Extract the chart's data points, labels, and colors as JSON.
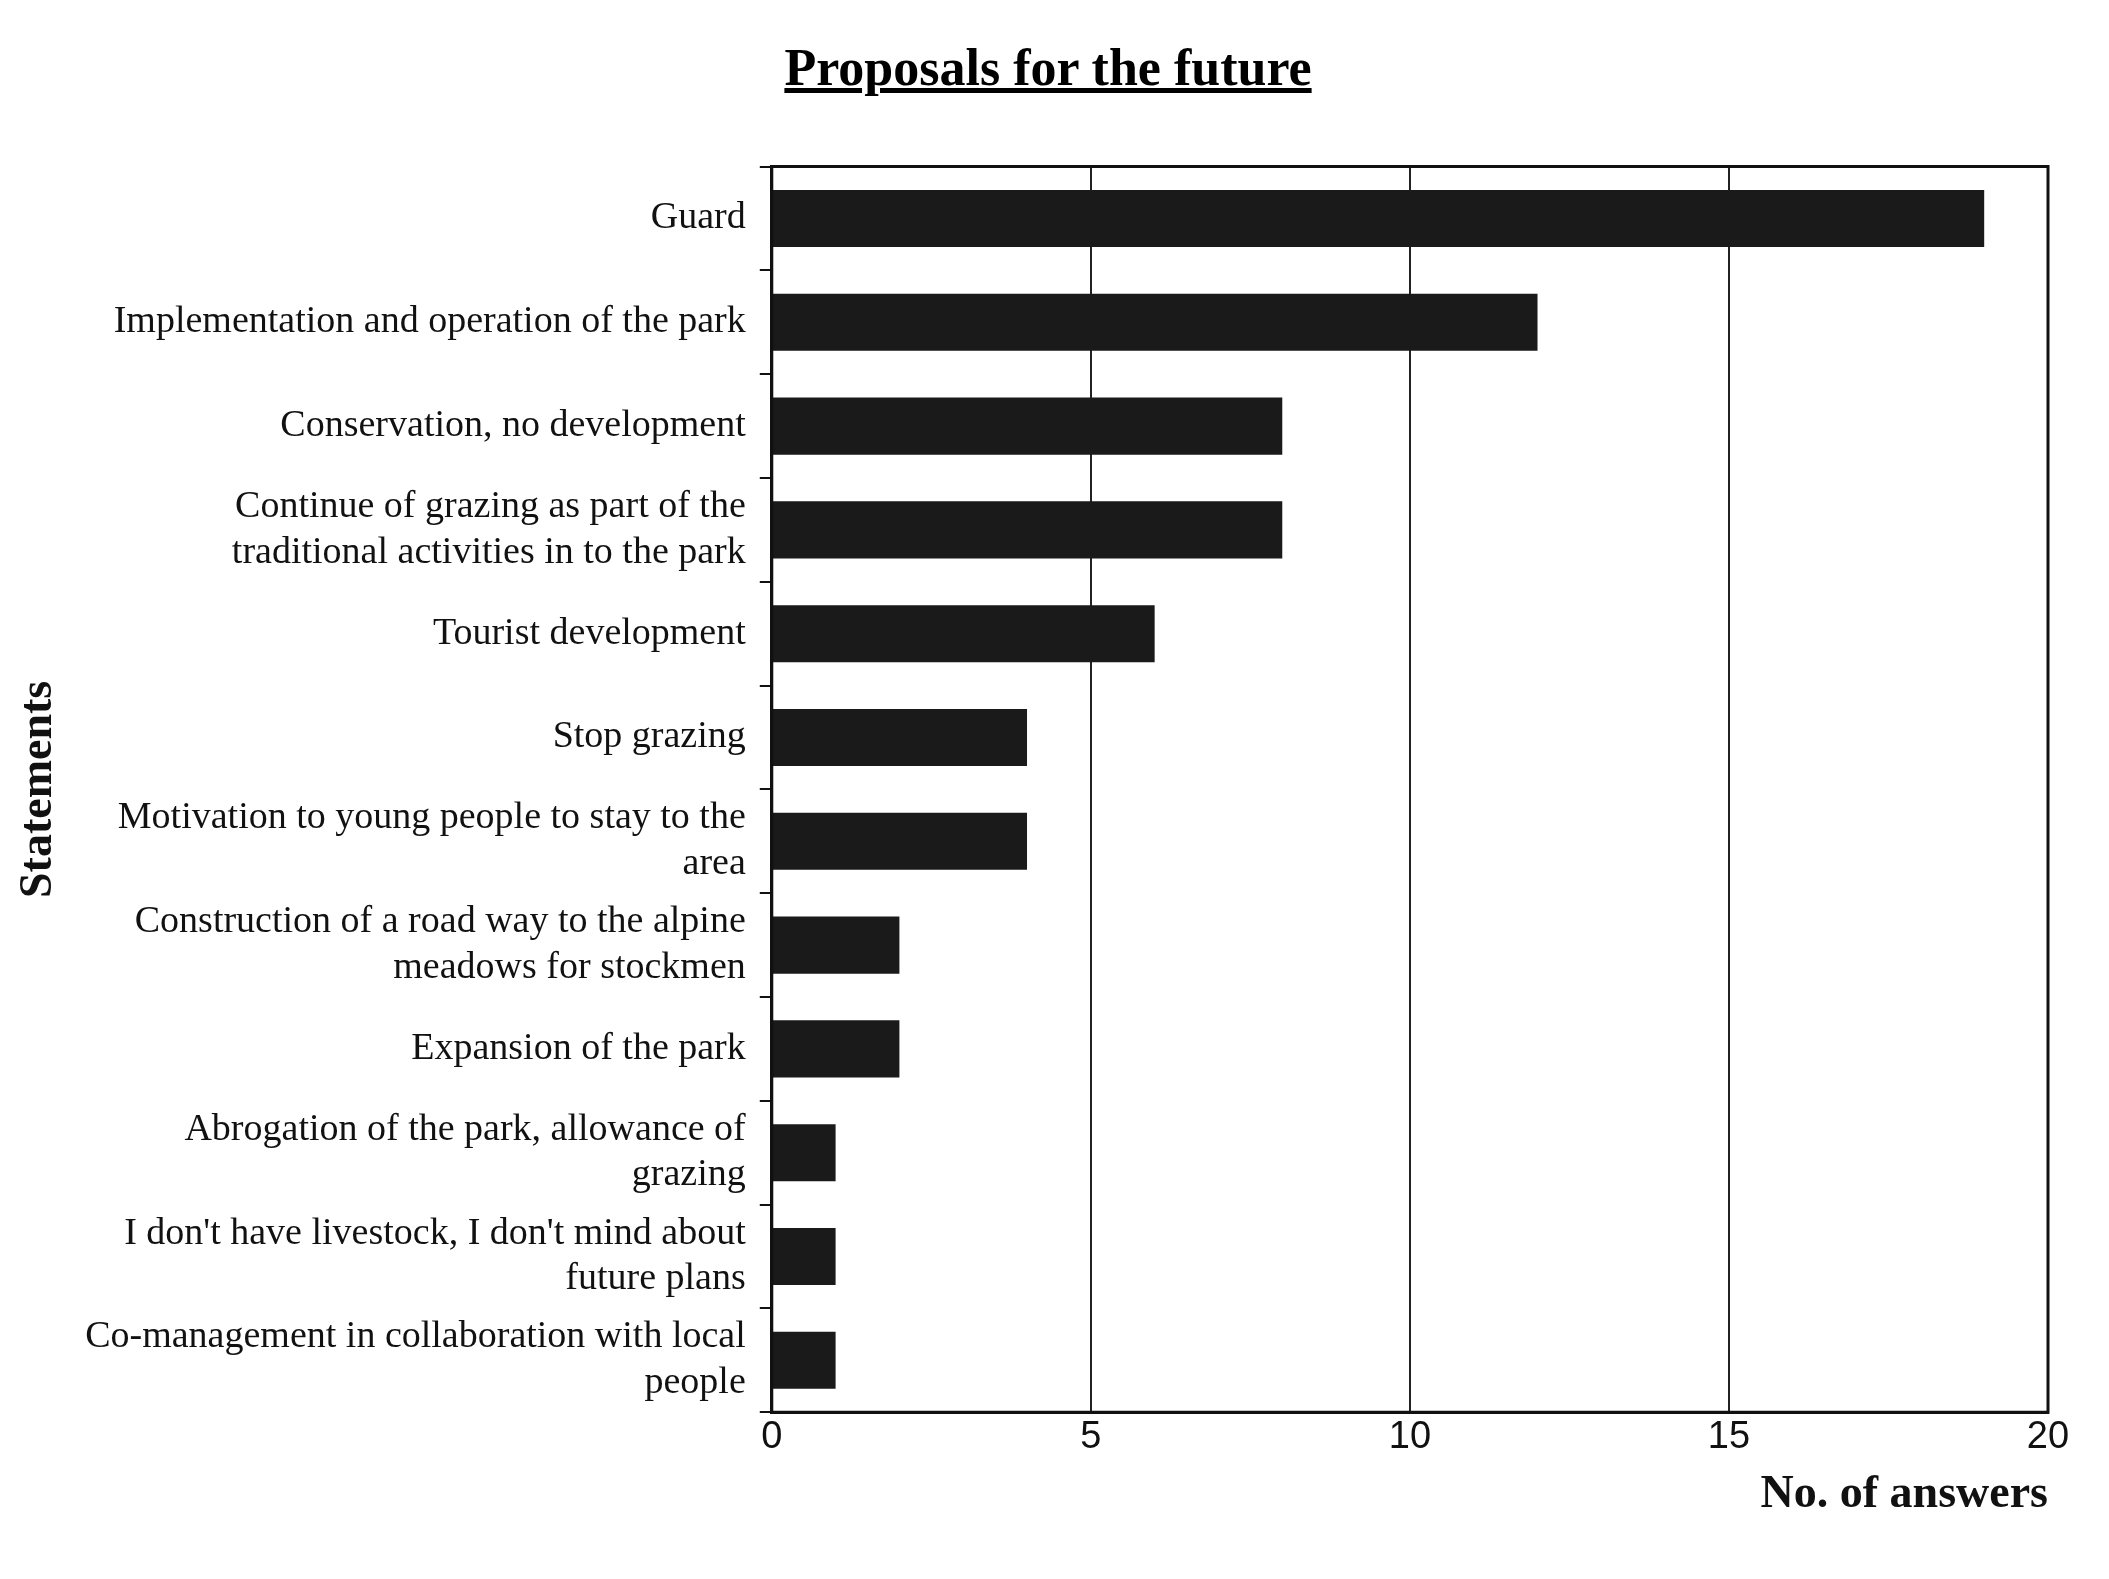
{
  "chart_data": {
    "type": "bar",
    "orientation": "horizontal",
    "title": "Proposals for the future",
    "xlabel": "No. of answers",
    "ylabel": "Statements",
    "categories": [
      "Guard",
      "Implementation and operation of the park",
      "Conservation, no development",
      "Continue of grazing as part of the traditional activities in to the park",
      "Tourist development",
      "Stop grazing",
      "Motivation to young people to stay to the area",
      "Construction of a road way to the alpine meadows for stockmen",
      "Expansion of the park",
      "Abrogation of the park, allowance of grazing",
      "I don't have livestock, I don't mind about future plans",
      "Co-management in collaboration with local people"
    ],
    "values": [
      19,
      12,
      8,
      8,
      6,
      4,
      4,
      2,
      2,
      1,
      1,
      1
    ],
    "color": "#1a1a1a",
    "xlim": [
      0,
      20
    ],
    "xticks": [
      0,
      5,
      10,
      15,
      20
    ],
    "grid": "x",
    "legend": false
  }
}
